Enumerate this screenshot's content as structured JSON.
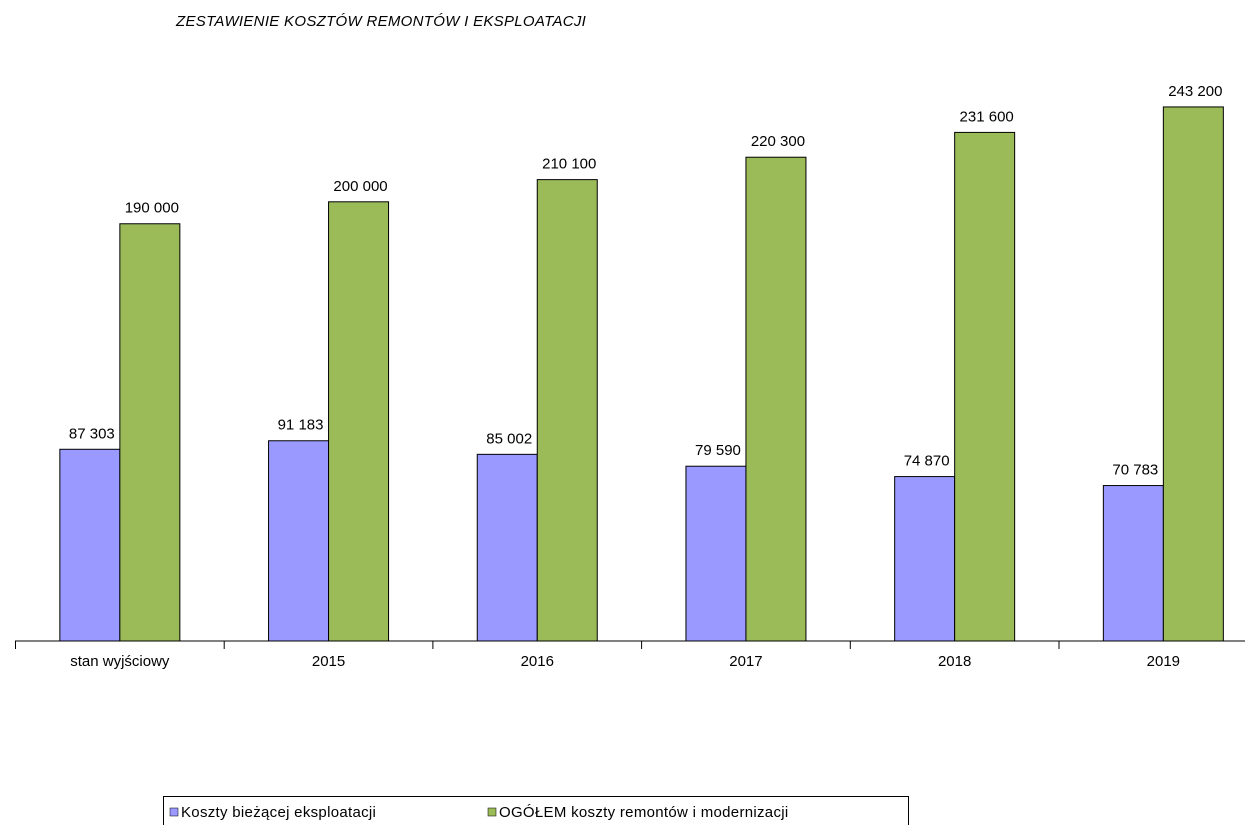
{
  "chart_data": {
    "type": "bar",
    "title": "ZESTAWIENIE KOSZTÓW REMONTÓW I EKSPLOATACJI",
    "categories": [
      "stan wyjściowy",
      "2015",
      "2016",
      "2017",
      "2018",
      "2019"
    ],
    "series": [
      {
        "name": "Koszty bieżącej eksploatacji",
        "color": "#9999ff",
        "values": [
          87303,
          91183,
          85002,
          79590,
          74870,
          70783
        ],
        "value_labels": [
          "87 303",
          "91 183",
          "85 002",
          "79 590",
          "74 870",
          "70 783"
        ]
      },
      {
        "name": "OGÓŁEM koszty remontów i modernizacji",
        "color": "#9bbb59",
        "values": [
          190000,
          200000,
          210100,
          220300,
          231600,
          243200
        ],
        "value_labels": [
          "190 000",
          "200 000",
          "210 100",
          "220 300",
          "231 600",
          "243 200"
        ]
      }
    ],
    "ylim": [
      0,
      250000
    ]
  }
}
